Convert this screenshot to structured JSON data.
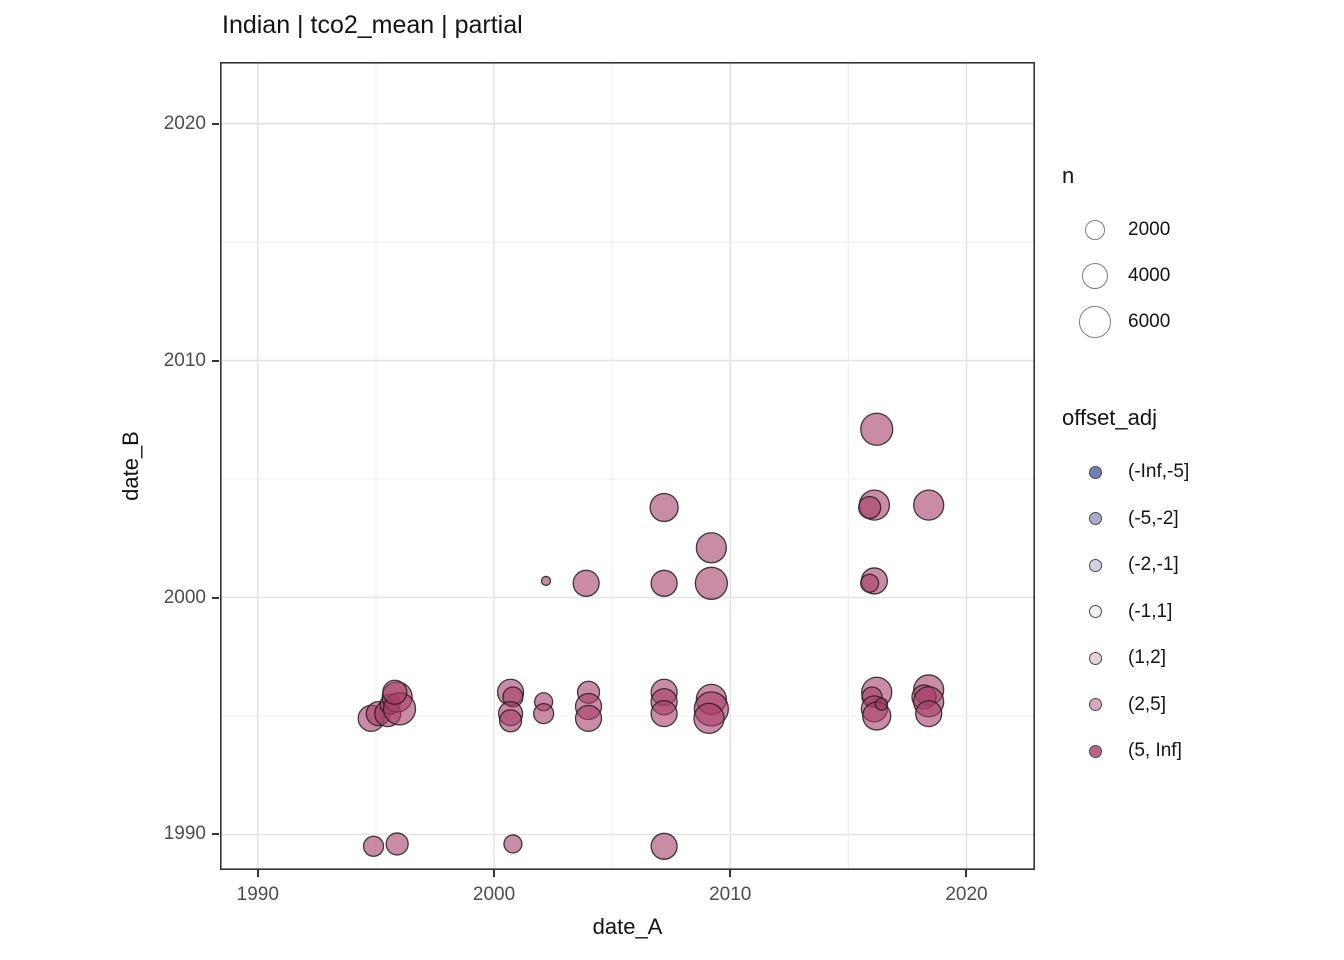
{
  "title": "Indian | tco2_mean | partial",
  "axes": {
    "x": {
      "title": "date_A",
      "ticks": [
        1990,
        2000,
        2010,
        2020
      ],
      "minor": [
        1995,
        2005,
        2015
      ]
    },
    "y": {
      "title": "date_B",
      "ticks": [
        1990,
        2000,
        2010,
        2020
      ],
      "minor": [
        1995,
        2005,
        2015
      ]
    }
  },
  "legend_n": {
    "title": "n",
    "items": [
      {
        "label": "2000",
        "r": 10
      },
      {
        "label": "4000",
        "r": 13.3
      },
      {
        "label": "6000",
        "r": 15.8
      }
    ]
  },
  "legend_offset": {
    "title": "offset_adj",
    "items": [
      {
        "label": "(-Inf,-5]",
        "color": "#6d80b9"
      },
      {
        "label": "(-5,-2]",
        "color": "#a7adcf"
      },
      {
        "label": "(-2,-1]",
        "color": "#d2d3e0"
      },
      {
        "label": "(-1,1]",
        "color": "#f0eff1"
      },
      {
        "label": "(1,2]",
        "color": "#e5d2d9"
      },
      {
        "label": "(2,5]",
        "color": "#d7a8bd"
      },
      {
        "label": "(5, Inf]",
        "color": "#bb6285"
      }
    ]
  },
  "style": {
    "point_fill": "#a63d67",
    "point_fill_alpha": 0.6,
    "point_stroke": "#1f1f1f",
    "grid_major": "#e3e3e3",
    "grid_minor": "#efefef",
    "panel_border": "#333333",
    "tick_color": "#333333",
    "tick_label_color": "#4d4d4d",
    "size_legend_stroke": "#7f7f7f",
    "color_legend_stroke": "#4a4a4a"
  },
  "chart_data": {
    "type": "scatter",
    "title": "Indian | tco2_mean | partial",
    "xlabel": "date_A",
    "ylabel": "date_B",
    "xlim": [
      1988.4,
      2022.9
    ],
    "ylim": [
      1988.5,
      2022.6
    ],
    "grid": true,
    "legend_position": "right",
    "size_variable": "n",
    "color_variable": "offset_adj",
    "observed_color_bin": "(5, Inf]",
    "points": [
      {
        "a": 1994.8,
        "b": 1994.9,
        "r": 13,
        "n": 4000
      },
      {
        "a": 1995.1,
        "b": 1995.1,
        "r": 12,
        "n": 3300
      },
      {
        "a": 1995.5,
        "b": 1995.1,
        "r": 13,
        "n": 4000
      },
      {
        "a": 1995.6,
        "b": 1995.5,
        "r": 10,
        "n": 2000
      },
      {
        "a": 1995.9,
        "b": 1995.8,
        "r": 15,
        "n": 5300
      },
      {
        "a": 1996.0,
        "b": 1995.3,
        "r": 16,
        "n": 6000
      },
      {
        "a": 1995.8,
        "b": 1996.0,
        "r": 12,
        "n": 3300
      },
      {
        "a": 1994.9,
        "b": 1989.5,
        "r": 10,
        "n": 2000
      },
      {
        "a": 1995.9,
        "b": 1989.6,
        "r": 11,
        "n": 2700
      },
      {
        "a": 2000.7,
        "b": 1996.0,
        "r": 13,
        "n": 4000
      },
      {
        "a": 2000.8,
        "b": 1995.8,
        "r": 10,
        "n": 2000
      },
      {
        "a": 2000.7,
        "b": 1995.1,
        "r": 12,
        "n": 3300
      },
      {
        "a": 2000.7,
        "b": 1994.8,
        "r": 11,
        "n": 2700
      },
      {
        "a": 2000.8,
        "b": 1989.6,
        "r": 9,
        "n": 1300
      },
      {
        "a": 2002.1,
        "b": 1995.6,
        "r": 9,
        "n": 1300
      },
      {
        "a": 2002.1,
        "b": 1995.1,
        "r": 10,
        "n": 2000
      },
      {
        "a": 2002.2,
        "b": 2000.7,
        "r": 4.5,
        "n": 200
      },
      {
        "a": 2003.9,
        "b": 2000.6,
        "r": 13,
        "n": 4000
      },
      {
        "a": 2004.0,
        "b": 1996.0,
        "r": 11,
        "n": 2700
      },
      {
        "a": 2004.0,
        "b": 1995.4,
        "r": 13,
        "n": 4000
      },
      {
        "a": 2004.0,
        "b": 1994.9,
        "r": 13,
        "n": 4000
      },
      {
        "a": 2007.2,
        "b": 2003.8,
        "r": 14,
        "n": 4700
      },
      {
        "a": 2007.2,
        "b": 2000.6,
        "r": 13,
        "n": 4000
      },
      {
        "a": 2007.2,
        "b": 1996.0,
        "r": 13,
        "n": 4000
      },
      {
        "a": 2007.2,
        "b": 1995.6,
        "r": 13,
        "n": 4000
      },
      {
        "a": 2007.2,
        "b": 1995.1,
        "r": 13,
        "n": 4000
      },
      {
        "a": 2007.2,
        "b": 1989.5,
        "r": 13,
        "n": 4000
      },
      {
        "a": 2009.2,
        "b": 2002.1,
        "r": 15,
        "n": 5300
      },
      {
        "a": 2009.2,
        "b": 2000.6,
        "r": 16,
        "n": 6000
      },
      {
        "a": 2009.2,
        "b": 1995.7,
        "r": 15,
        "n": 5300
      },
      {
        "a": 2009.2,
        "b": 1995.3,
        "r": 17,
        "n": 6700
      },
      {
        "a": 2009.1,
        "b": 1994.9,
        "r": 15,
        "n": 5300
      },
      {
        "a": 2016.2,
        "b": 2007.1,
        "r": 16,
        "n": 6000
      },
      {
        "a": 2016.1,
        "b": 2003.9,
        "r": 15,
        "n": 5300
      },
      {
        "a": 2015.9,
        "b": 2003.8,
        "r": 11,
        "n": 2700
      },
      {
        "a": 2016.1,
        "b": 2000.7,
        "r": 13,
        "n": 4000
      },
      {
        "a": 2015.9,
        "b": 2000.6,
        "r": 9,
        "n": 1300
      },
      {
        "a": 2016.2,
        "b": 1996.0,
        "r": 15,
        "n": 5300
      },
      {
        "a": 2016.0,
        "b": 1995.8,
        "r": 10,
        "n": 2000
      },
      {
        "a": 2016.1,
        "b": 1995.3,
        "r": 13,
        "n": 4000
      },
      {
        "a": 2016.2,
        "b": 1995.0,
        "r": 14,
        "n": 4700
      },
      {
        "a": 2016.4,
        "b": 1995.5,
        "r": 6,
        "n": 500
      },
      {
        "a": 2018.4,
        "b": 2003.9,
        "r": 15,
        "n": 5300
      },
      {
        "a": 2018.4,
        "b": 1996.1,
        "r": 15,
        "n": 5300
      },
      {
        "a": 2018.2,
        "b": 1995.8,
        "r": 12,
        "n": 3300
      },
      {
        "a": 2018.4,
        "b": 1995.6,
        "r": 15,
        "n": 5300
      },
      {
        "a": 2018.4,
        "b": 1995.1,
        "r": 13,
        "n": 4000
      }
    ]
  }
}
